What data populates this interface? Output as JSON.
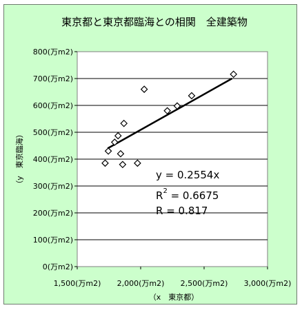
{
  "chart_data": {
    "type": "scatter",
    "title": "東京都と東京都臨海との相関　全建築物",
    "xlabel": "（x　東京都）",
    "ylabel": "（y　東京臨海）",
    "xlim": [
      1500,
      3000
    ],
    "ylim": [
      0,
      800
    ],
    "x_ticks": [
      1500,
      2000,
      2500,
      3000
    ],
    "y_ticks": [
      0,
      100,
      200,
      300,
      400,
      500,
      600,
      700,
      800
    ],
    "x_tick_labels": [
      "1,500(万m2)",
      "2,000(万m2)",
      "2,500(万m2)",
      "3,000(万m2)"
    ],
    "y_tick_labels": [
      "0(万m2)",
      "100(万m2)",
      "200(万m2)",
      "300(万m2)",
      "400(万m2)",
      "500(万m2)",
      "600(万m2)",
      "700(万m2)",
      "800(万m2)"
    ],
    "grid": "horizontal",
    "marker": "diamond",
    "points": [
      {
        "x": 1720,
        "y": 385
      },
      {
        "x": 1745,
        "y": 430
      },
      {
        "x": 1795,
        "y": 463
      },
      {
        "x": 1822,
        "y": 487
      },
      {
        "x": 1842,
        "y": 420
      },
      {
        "x": 1858,
        "y": 380
      },
      {
        "x": 1868,
        "y": 533
      },
      {
        "x": 1975,
        "y": 385
      },
      {
        "x": 2028,
        "y": 660
      },
      {
        "x": 2210,
        "y": 580
      },
      {
        "x": 2288,
        "y": 598
      },
      {
        "x": 2402,
        "y": 636
      },
      {
        "x": 2732,
        "y": 716
      }
    ],
    "trendline": {
      "x": [
        1740,
        2720
      ],
      "y": [
        440,
        700
      ]
    },
    "annotations": {
      "equation": "y = 0.2554x",
      "r2_label": "R",
      "r2_sup": "2",
      "r2_value": " = 0.6675",
      "r_text": "R = 0.817"
    }
  }
}
